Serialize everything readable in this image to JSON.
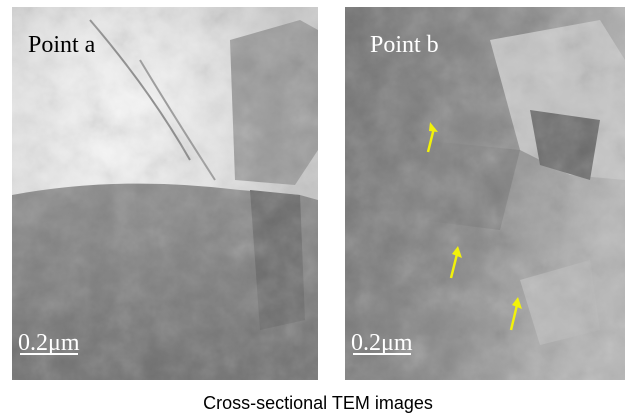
{
  "panels": [
    {
      "label": "Point a",
      "scale": "0.2μm"
    },
    {
      "label": "Point b",
      "scale": "0.2μm"
    }
  ],
  "caption": "Cross-sectional TEM images"
}
